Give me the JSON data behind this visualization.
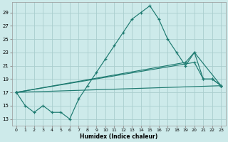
{
  "xlabel": "Humidex (Indice chaleur)",
  "background_color": "#cdeaea",
  "grid_color": "#aacece",
  "line_color": "#1d7a70",
  "xlim": [
    -0.5,
    23.5
  ],
  "ylim": [
    12.0,
    30.5
  ],
  "yticks": [
    13,
    15,
    17,
    19,
    21,
    23,
    25,
    27,
    29
  ],
  "xticks": [
    0,
    1,
    2,
    3,
    4,
    5,
    6,
    7,
    8,
    9,
    10,
    11,
    12,
    13,
    14,
    15,
    16,
    17,
    18,
    19,
    20,
    21,
    22,
    23
  ],
  "xtick_labels": [
    "0",
    "1",
    "2",
    "3",
    "4",
    "5",
    "6",
    "7",
    "8",
    "9",
    "10",
    "11",
    "12",
    "13",
    "14",
    "15",
    "16",
    "17",
    "18",
    "19",
    "20",
    "21",
    "22",
    "23"
  ],
  "main_line": {
    "x": [
      0,
      1,
      2,
      3,
      4,
      5,
      6,
      7,
      8,
      9,
      10,
      11,
      12,
      13,
      14,
      15,
      16,
      17,
      18,
      19,
      20,
      21,
      22,
      23
    ],
    "y": [
      17,
      15,
      14,
      15,
      14,
      14,
      13,
      16,
      18,
      20,
      22,
      24,
      26,
      28,
      29,
      30,
      28,
      25,
      23,
      21,
      23,
      19,
      19,
      18
    ]
  },
  "trend_lines": [
    {
      "x": [
        0,
        20,
        21,
        22,
        23
      ],
      "y": [
        17,
        21.5,
        19.0,
        19.0,
        18.0
      ]
    },
    {
      "x": [
        0,
        19,
        20,
        23
      ],
      "y": [
        17,
        21.5,
        23.0,
        18.0
      ]
    },
    {
      "x": [
        0,
        23
      ],
      "y": [
        17,
        18.0
      ]
    }
  ]
}
